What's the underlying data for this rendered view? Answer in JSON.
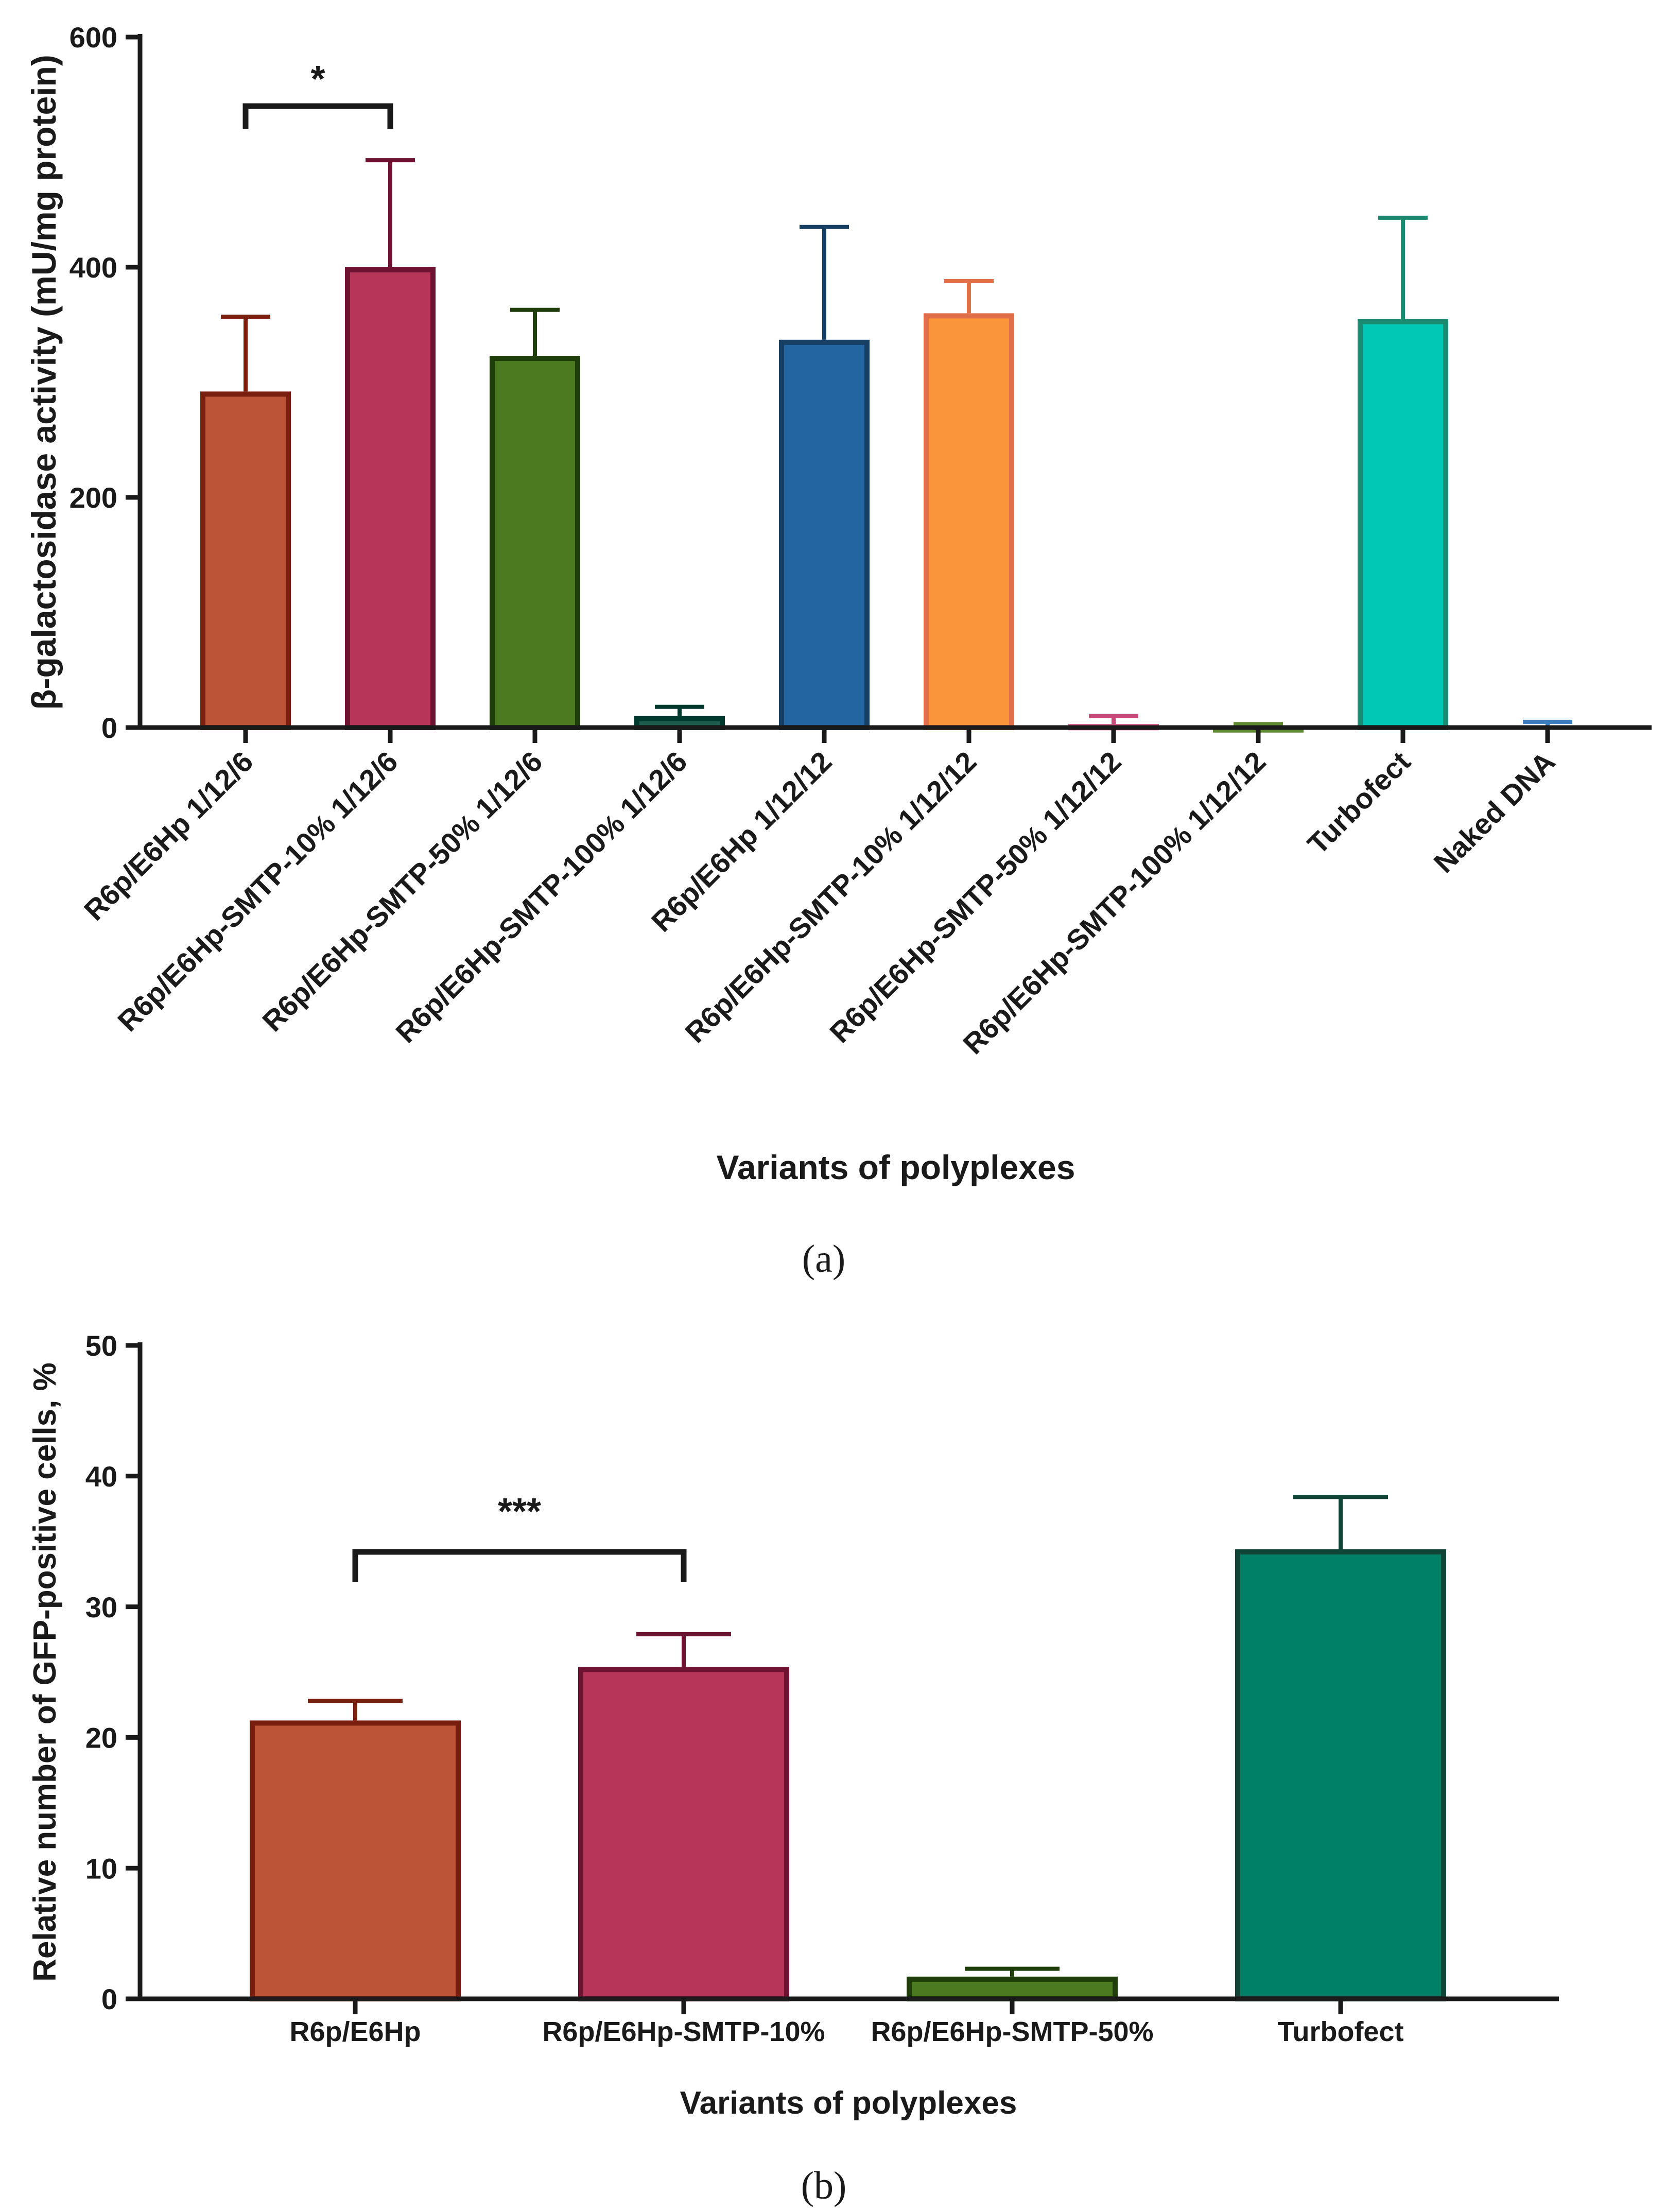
{
  "chart_data": [
    {
      "type": "bar",
      "panel_label": "(a)",
      "xlabel": "Variants of polyplexes",
      "ylabel": "β-galactosidase activity (mU/mg protein)",
      "ylim": [
        0,
        600
      ],
      "yticks": [
        0,
        200,
        400,
        600
      ],
      "categories": [
        "R6p/E6Hp 1/12/6",
        "R6p/E6Hp-SMTP-10% 1/12/6",
        "R6p/E6Hp-SMTP-50% 1/12/6",
        "R6p/E6Hp-SMTP-100% 1/12/6",
        "R6p/E6Hp 1/12/12",
        "R6p/E6Hp-SMTP-10% 1/12/12",
        "R6p/E6Hp-SMTP-50% 1/12/12",
        "R6p/E6Hp-SMTP-100% 1/12/12",
        "Turbofect",
        "Naked DNA"
      ],
      "values": [
        292,
        400,
        323,
        10,
        337,
        360,
        3,
        1,
        355,
        0
      ],
      "errors": [
        65,
        93,
        40,
        8,
        98,
        28,
        7,
        2,
        88,
        5
      ],
      "fill_colors": [
        "#bc5438",
        "#b8355a",
        "#4c7a20",
        "#1e5c4e",
        "#2265a0",
        "#fa953b",
        "#c84a78",
        "#5f8a30",
        "#00c8b4",
        "#3a7cc0"
      ],
      "edge_colors": [
        "#7a1e10",
        "#6e1232",
        "#1e3d0a",
        "#003a2e",
        "#173f64",
        "#e0704a",
        "#c84a78",
        "#5f8a30",
        "#1a8a70",
        "#3a7cc0"
      ],
      "significance": [
        {
          "from": 0,
          "to": 1,
          "label": "*",
          "y": 540
        }
      ]
    },
    {
      "type": "bar",
      "panel_label": "(b)",
      "xlabel": "Variants of polyplexes",
      "ylabel": "Relative number of GFP-positive cells, %",
      "ylim": [
        0,
        50
      ],
      "yticks": [
        0,
        10,
        20,
        30,
        40,
        50
      ],
      "categories": [
        "R6p/E6Hp",
        "R6p/E6Hp-SMTP-10%",
        "R6p/E6Hp-SMTP-50%",
        "Turbofect"
      ],
      "values": [
        21.3,
        25.4,
        1.7,
        34.4
      ],
      "errors": [
        1.5,
        2.5,
        0.6,
        4.0
      ],
      "fill_colors": [
        "#bc5438",
        "#b8355a",
        "#4c7a20",
        "#008066"
      ],
      "edge_colors": [
        "#7a1e10",
        "#6e1232",
        "#1e3d0a",
        "#0e4536"
      ],
      "significance": [
        {
          "from": 0,
          "to": 1,
          "label": "***",
          "y": 34.2
        }
      ]
    }
  ]
}
